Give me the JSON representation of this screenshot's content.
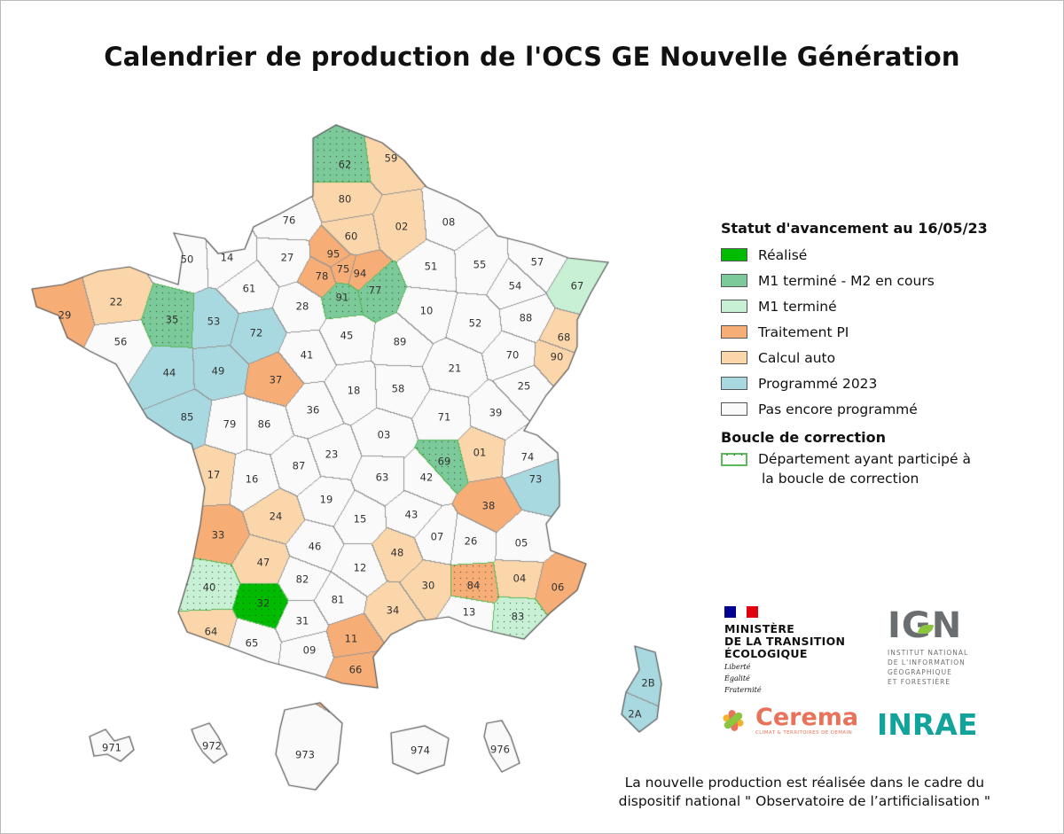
{
  "title": "Calendrier de production de l'OCS GE Nouvelle Génération",
  "legend": {
    "title": "Statut d'avancement au 16/05/23",
    "items": [
      {
        "key": "R",
        "label": "Réalisé",
        "color": "#00bb00"
      },
      {
        "key": "M12",
        "label": "M1 terminé - M2 en cours",
        "color": "#7cc99a"
      },
      {
        "key": "M1",
        "label": "M1 terminé",
        "color": "#c8f0d4"
      },
      {
        "key": "PI",
        "label": "Traitement PI",
        "color": "#f7ad76"
      },
      {
        "key": "CA",
        "label": "Calcul auto",
        "color": "#fbd6ab"
      },
      {
        "key": "P23",
        "label": "Programmé 2023",
        "color": "#a9d9e0"
      },
      {
        "key": "N",
        "label": "Pas encore programmé",
        "color": "#fafafa"
      }
    ],
    "loop_title": "Boucle de correction",
    "loop_label_1": "Département ayant participé à",
    "loop_label_2": "la boucle de correction",
    "loop_color": "#5cb85c"
  },
  "departments": [
    {
      "code": "62",
      "status": "M12",
      "loop": true
    },
    {
      "code": "59",
      "status": "CA"
    },
    {
      "code": "80",
      "status": "CA"
    },
    {
      "code": "02",
      "status": "CA"
    },
    {
      "code": "08",
      "status": "N"
    },
    {
      "code": "76",
      "status": "N"
    },
    {
      "code": "60",
      "status": "CA"
    },
    {
      "code": "95",
      "status": "PI"
    },
    {
      "code": "75",
      "status": "PI"
    },
    {
      "code": "78",
      "status": "PI"
    },
    {
      "code": "94",
      "status": "PI"
    },
    {
      "code": "91",
      "status": "M12",
      "loop": true
    },
    {
      "code": "77",
      "status": "M12",
      "loop": true
    },
    {
      "code": "51",
      "status": "N"
    },
    {
      "code": "55",
      "status": "N"
    },
    {
      "code": "57",
      "status": "N"
    },
    {
      "code": "67",
      "status": "M1"
    },
    {
      "code": "54",
      "status": "N"
    },
    {
      "code": "88",
      "status": "N"
    },
    {
      "code": "68",
      "status": "CA"
    },
    {
      "code": "90",
      "status": "CA"
    },
    {
      "code": "52",
      "status": "N"
    },
    {
      "code": "10",
      "status": "N"
    },
    {
      "code": "89",
      "status": "N"
    },
    {
      "code": "45",
      "status": "N"
    },
    {
      "code": "28",
      "status": "N"
    },
    {
      "code": "27",
      "status": "N"
    },
    {
      "code": "14",
      "status": "N"
    },
    {
      "code": "50",
      "status": "N"
    },
    {
      "code": "61",
      "status": "N"
    },
    {
      "code": "72",
      "status": "P23"
    },
    {
      "code": "53",
      "status": "P23"
    },
    {
      "code": "35",
      "status": "M12",
      "loop": true
    },
    {
      "code": "22",
      "status": "CA"
    },
    {
      "code": "29",
      "status": "PI"
    },
    {
      "code": "56",
      "status": "N"
    },
    {
      "code": "44",
      "status": "P23"
    },
    {
      "code": "49",
      "status": "P23"
    },
    {
      "code": "37",
      "status": "PI"
    },
    {
      "code": "41",
      "status": "N"
    },
    {
      "code": "18",
      "status": "N"
    },
    {
      "code": "58",
      "status": "N"
    },
    {
      "code": "21",
      "status": "N"
    },
    {
      "code": "70",
      "status": "N"
    },
    {
      "code": "25",
      "status": "N"
    },
    {
      "code": "39",
      "status": "N"
    },
    {
      "code": "71",
      "status": "N"
    },
    {
      "code": "85",
      "status": "P23"
    },
    {
      "code": "79",
      "status": "N"
    },
    {
      "code": "86",
      "status": "N"
    },
    {
      "code": "36",
      "status": "N"
    },
    {
      "code": "03",
      "status": "N"
    },
    {
      "code": "01",
      "status": "CA"
    },
    {
      "code": "74",
      "status": "N"
    },
    {
      "code": "73",
      "status": "P23"
    },
    {
      "code": "69",
      "status": "M12",
      "loop": true
    },
    {
      "code": "42",
      "status": "N"
    },
    {
      "code": "38",
      "status": "PI"
    },
    {
      "code": "17",
      "status": "CA"
    },
    {
      "code": "16",
      "status": "N"
    },
    {
      "code": "87",
      "status": "N"
    },
    {
      "code": "23",
      "status": "N"
    },
    {
      "code": "63",
      "status": "N"
    },
    {
      "code": "19",
      "status": "N"
    },
    {
      "code": "24",
      "status": "CA"
    },
    {
      "code": "15",
      "status": "N"
    },
    {
      "code": "43",
      "status": "N"
    },
    {
      "code": "07",
      "status": "N"
    },
    {
      "code": "26",
      "status": "N"
    },
    {
      "code": "05",
      "status": "N"
    },
    {
      "code": "33",
      "status": "PI"
    },
    {
      "code": "47",
      "status": "CA"
    },
    {
      "code": "46",
      "status": "N"
    },
    {
      "code": "48",
      "status": "CA"
    },
    {
      "code": "04",
      "status": "CA"
    },
    {
      "code": "06",
      "status": "PI"
    },
    {
      "code": "84",
      "status": "PI",
      "loop": true
    },
    {
      "code": "30",
      "status": "CA"
    },
    {
      "code": "13",
      "status": "N"
    },
    {
      "code": "83",
      "status": "M1",
      "loop": true
    },
    {
      "code": "12",
      "status": "N"
    },
    {
      "code": "82",
      "status": "N"
    },
    {
      "code": "81",
      "status": "N"
    },
    {
      "code": "34",
      "status": "CA"
    },
    {
      "code": "40",
      "status": "M1",
      "loop": true
    },
    {
      "code": "32",
      "status": "R",
      "loop": true
    },
    {
      "code": "31",
      "status": "N"
    },
    {
      "code": "64",
      "status": "CA"
    },
    {
      "code": "65",
      "status": "N"
    },
    {
      "code": "09",
      "status": "N"
    },
    {
      "code": "11",
      "status": "PI"
    },
    {
      "code": "66",
      "status": "PI"
    },
    {
      "code": "2B",
      "status": "P23"
    },
    {
      "code": "2A",
      "status": "P23"
    },
    {
      "code": "971",
      "status": "N"
    },
    {
      "code": "972",
      "status": "N"
    },
    {
      "code": "973",
      "status": "N"
    },
    {
      "code": "974",
      "status": "N"
    },
    {
      "code": "976",
      "status": "N"
    }
  ],
  "logos": {
    "ministere": {
      "line1": "MINISTÈRE",
      "line2": "DE LA TRANSITION",
      "line3": "ÉCOLOGIQUE",
      "devise1": "Liberté",
      "devise2": "Égalité",
      "devise3": "Fraternité"
    },
    "ign": {
      "name": "IGN",
      "line1": "INSTITUT NATIONAL",
      "line2": "DE L'INFORMATION",
      "line3": "GÉOGRAPHIQUE",
      "line4": "ET FORESTIÈRE"
    },
    "cerema": {
      "name": "Cerema",
      "tagline": "CLIMAT & TERRITOIRES DE DEMAIN"
    },
    "inrae": {
      "name": "INRAE"
    }
  },
  "footer": {
    "line1": "La nouvelle production est réalisée dans le cadre du",
    "line2": "dispositif national \" Observatoire de l’artificialisation \""
  }
}
